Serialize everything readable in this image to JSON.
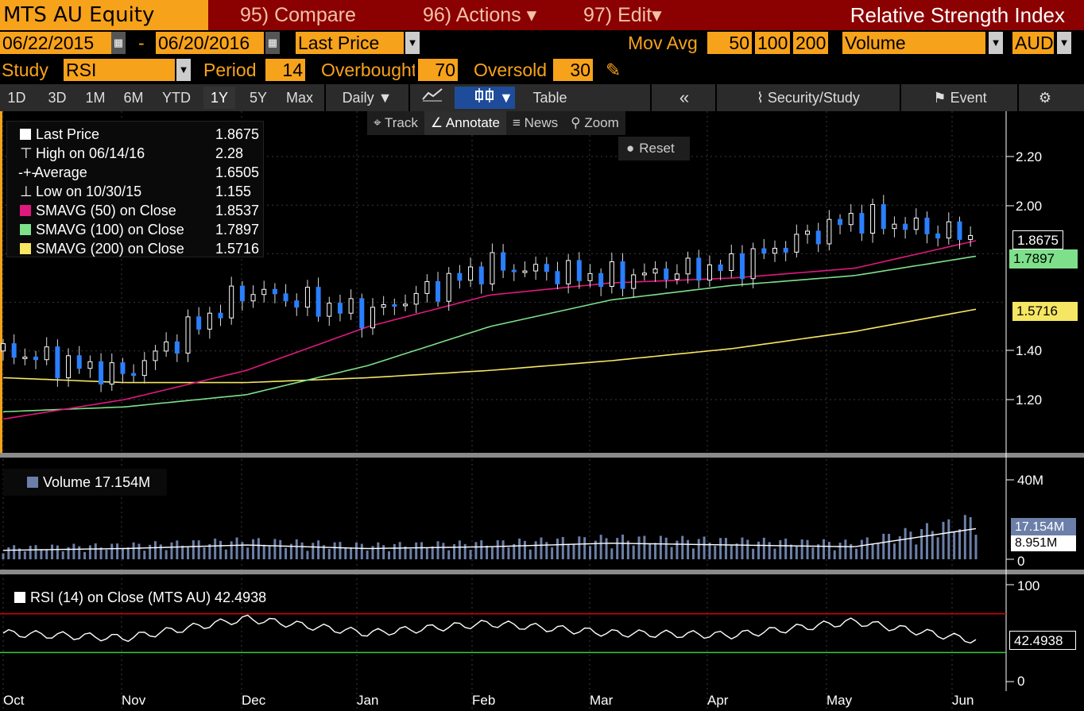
{
  "header": {
    "ticker": "MTS AU Equity",
    "menu_compare": "95) Compare",
    "menu_actions": "96) Actions",
    "menu_edit": "97) Edit",
    "title": "Relative Strength Index"
  },
  "controls": {
    "start_date": "06/22/2015",
    "dash": "-",
    "end_date": "06/20/2016",
    "price_field": "Last Price",
    "mov_avg_label": "Mov Avg",
    "mov_avg_1": "50",
    "mov_avg_2": "100",
    "mov_avg_3": "200",
    "lower_study": "Volume",
    "currency": "AUD",
    "study_label": "Study",
    "study_value": "RSI",
    "period_label": "Period",
    "period_value": "14",
    "overbought_label": "Overbought",
    "overbought_value": "70",
    "oversold_label": "Oversold",
    "oversold_value": "30"
  },
  "range_buttons": [
    "1D",
    "3D",
    "1M",
    "6M",
    "YTD",
    "1Y",
    "5Y",
    "Max"
  ],
  "active_range": "1Y",
  "toolbar": {
    "frequency": "Daily",
    "table": "Table",
    "collapse": "«",
    "security_study": "Security/Study",
    "event": "Event",
    "track": "Track",
    "annotate": "Annotate",
    "news": "News",
    "zoom": "Zoom",
    "reset": "Reset"
  },
  "legend": [
    {
      "label": "Last Price",
      "value": "1.8675",
      "color": "#ffffff"
    },
    {
      "label": "High on 06/14/16",
      "value": "2.28",
      "color": ""
    },
    {
      "label": "Average",
      "value": "1.6505",
      "color": ""
    },
    {
      "label": "Low on 10/30/15",
      "value": "1.155",
      "color": ""
    },
    {
      "label": "SMAVG (50) on Close",
      "value": "1.8537",
      "color": "#e0197d"
    },
    {
      "label": "SMAVG (100) on Close",
      "value": "1.7897",
      "color": "#7ee08a"
    },
    {
      "label": "SMAVG (200) on Close",
      "value": "1.5716",
      "color": "#f5e663"
    }
  ],
  "price_axis": [
    "2.20",
    "2.00",
    "1.40",
    "1.20"
  ],
  "price_tags": {
    "last": "1.8675",
    "sma100": "1.7897",
    "sma200": "1.5716"
  },
  "volume": {
    "legend": "Volume 17.154M",
    "axis_top": "40M",
    "axis_zero": "0",
    "tag_volume": "17.154M",
    "tag_avg": "8.951M"
  },
  "rsi": {
    "legend": "RSI (14) on Close (MTS AU) 42.4938",
    "axis_top": "100",
    "axis_zero": "0",
    "tag": "42.4938"
  },
  "x_labels": [
    "Oct",
    "Nov",
    "Dec",
    "Jan",
    "Feb",
    "Mar",
    "Apr",
    "May",
    "Jun"
  ],
  "colors": {
    "up": "#ffffff",
    "down": "#2a7fff",
    "sma50": "#e0197d",
    "sma100": "#7ee08a",
    "sma200": "#f5e663",
    "overbought": "#e00000",
    "oversold": "#2ecc40",
    "accent": "#f7a21b"
  },
  "chart_data": {
    "type": "line",
    "series": [
      {
        "name": "Last Price",
        "x": [
          "Oct",
          "Nov",
          "Dec",
          "Jan",
          "Feb",
          "Mar",
          "Apr",
          "May",
          "Jun"
        ],
        "values": [
          1.4,
          1.3,
          1.65,
          1.55,
          1.75,
          1.7,
          1.75,
          1.95,
          1.8675
        ]
      },
      {
        "name": "SMAVG (50) on Close",
        "x": [
          "Oct",
          "Nov",
          "Dec",
          "Jan",
          "Feb",
          "Mar",
          "Apr",
          "May",
          "Jun"
        ],
        "values": [
          1.12,
          1.2,
          1.32,
          1.5,
          1.63,
          1.68,
          1.7,
          1.74,
          1.8537
        ]
      },
      {
        "name": "SMAVG (100) on Close",
        "x": [
          "Oct",
          "Nov",
          "Dec",
          "Jan",
          "Feb",
          "Mar",
          "Apr",
          "May",
          "Jun"
        ],
        "values": [
          1.15,
          1.17,
          1.22,
          1.34,
          1.5,
          1.61,
          1.67,
          1.71,
          1.7897
        ]
      },
      {
        "name": "SMAVG (200) on Close",
        "x": [
          "Oct",
          "Nov",
          "Dec",
          "Jan",
          "Feb",
          "Mar",
          "Apr",
          "May",
          "Jun"
        ],
        "values": [
          1.29,
          1.27,
          1.27,
          1.29,
          1.32,
          1.36,
          1.41,
          1.48,
          1.5716
        ]
      }
    ],
    "volume_m": [
      5,
      6,
      8,
      6,
      7,
      9,
      8,
      7,
      17.154
    ],
    "rsi": [
      50,
      45,
      65,
      50,
      60,
      50,
      48,
      62,
      42.4938
    ],
    "ylim": [
      1.0,
      2.4
    ],
    "overbought": 70,
    "oversold": 30
  }
}
